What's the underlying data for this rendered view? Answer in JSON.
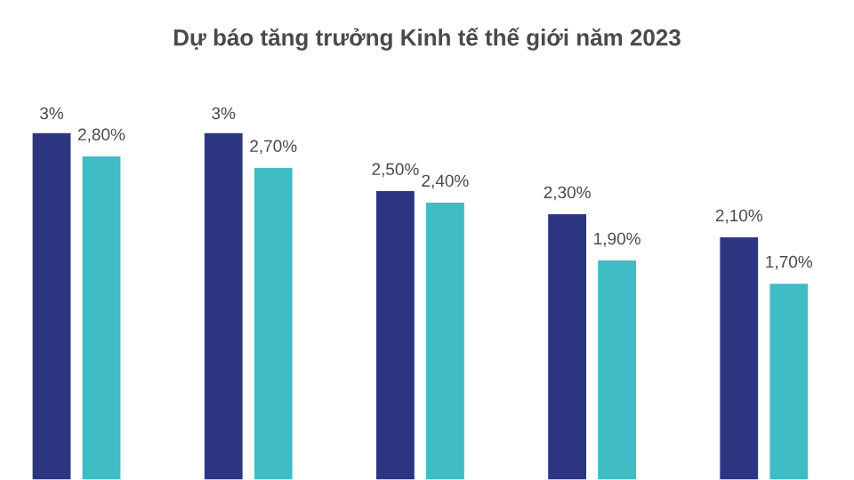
{
  "chart_data": {
    "type": "bar",
    "title": "Dự báo tăng trưởng Kinh tế thế giới năm 2023",
    "categories": [
      null,
      null,
      null,
      null,
      null
    ],
    "series": [
      {
        "color": "#2e3580",
        "values": [
          3,
          3,
          2.5,
          2.3,
          2.1
        ],
        "value_labels": [
          "3%",
          "3%",
          "2,50%",
          "2,30%",
          "2,10%"
        ]
      },
      {
        "color": "#3fbcc6",
        "values": [
          2.8,
          2.7,
          2.4,
          1.9,
          1.7
        ],
        "value_labels": [
          "2,80%",
          "2,70%",
          "2,40%",
          "1,90%",
          "1,70%"
        ]
      }
    ],
    "tick_labels": false
  }
}
